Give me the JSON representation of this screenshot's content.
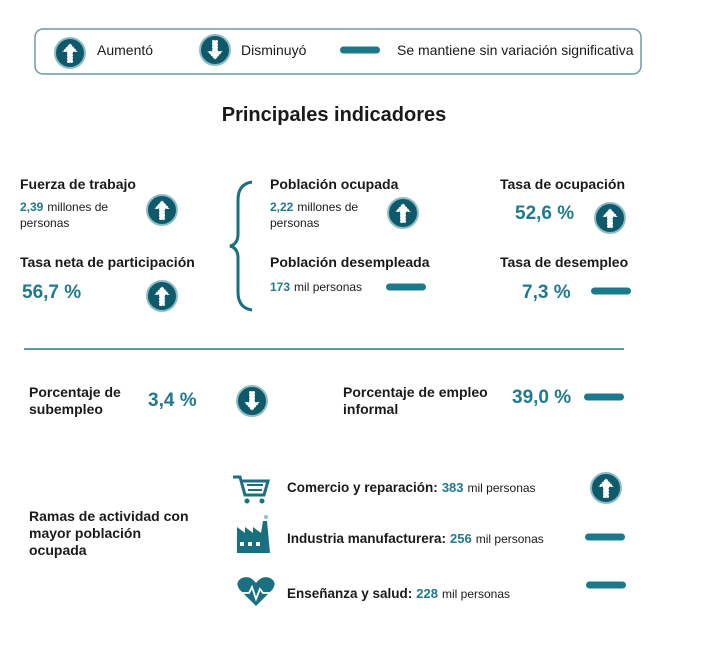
{
  "legend": {
    "up": "Aumentó",
    "down": "Disminuyó",
    "same": "Se mantiene sin variación significativa"
  },
  "title": "Principales indicadores",
  "indicators": [
    {
      "label": "Fuerza de trabajo",
      "value": "2,39",
      "unit": "millones de personas",
      "trend": "up"
    },
    {
      "label": "Tasa neta de participación",
      "value": "56,7 %",
      "trend": "up"
    },
    {
      "label": "Población ocupada",
      "value": "2,22",
      "unit": "millones de personas",
      "trend": "up"
    },
    {
      "label": "Población desempleada",
      "value": "173",
      "unit": "mil personas",
      "trend": "same"
    },
    {
      "label": "Tasa de ocupación",
      "value": "52,6 %",
      "trend": "up"
    },
    {
      "label": "Tasa de desempleo",
      "value": "7,3 %",
      "trend": "same"
    },
    {
      "label": "Porcentaje de subempleo",
      "value": "3,4 %",
      "trend": "down"
    },
    {
      "label": "Porcentaje de empleo informal",
      "value": "39,0 %",
      "trend": "same"
    }
  ],
  "branches": {
    "label": "Ramas de actividad con mayor población ocupada",
    "items": [
      {
        "label": "Comercio y reparación:",
        "value": "383",
        "unit": "mil personas",
        "trend": "up"
      },
      {
        "label": "Industria manufacturera:",
        "value": "256",
        "unit": "mil personas",
        "trend": "same"
      },
      {
        "label": "Enseñanza y salud:",
        "value": "228",
        "unit": "mil personas",
        "trend": "same"
      }
    ]
  }
}
